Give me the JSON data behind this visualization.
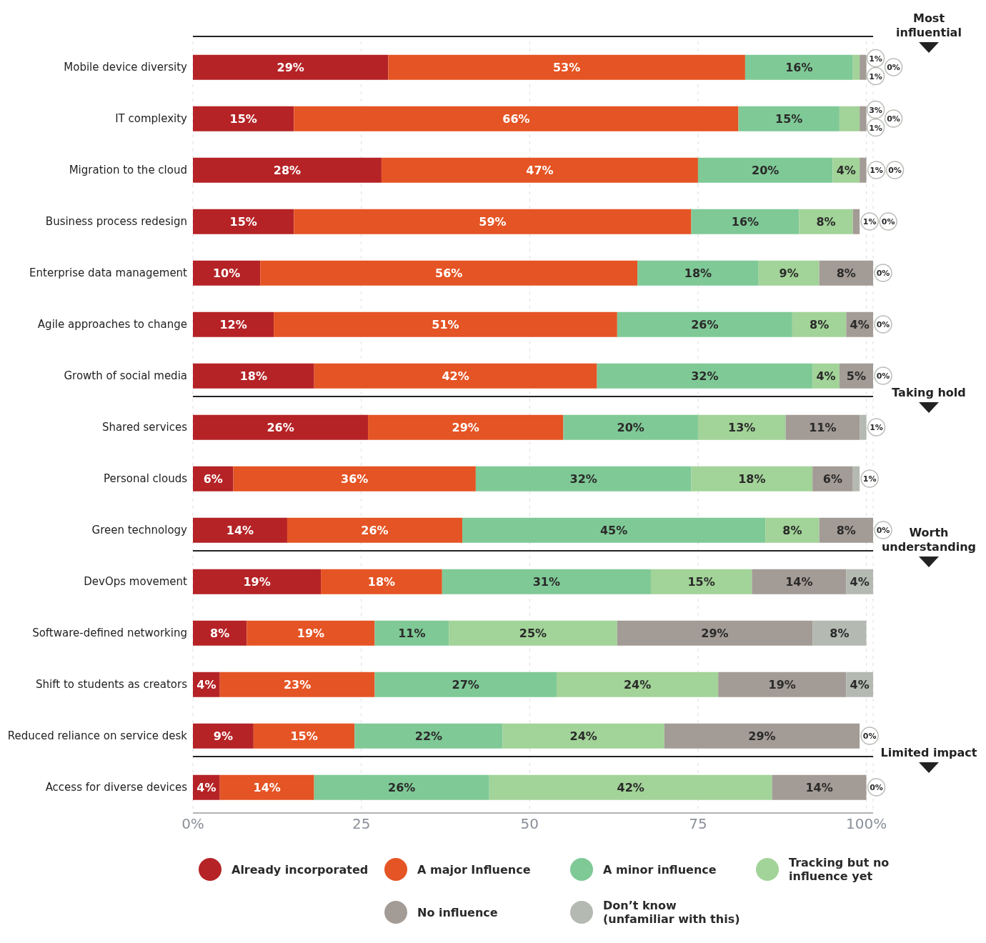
{
  "chart_data": {
    "type": "bar",
    "orientation": "horizontal",
    "stacked": true,
    "categories": [
      "Mobile device diversity",
      "IT complexity",
      "Migration to the cloud",
      "Business process redesign",
      "Enterprise data management",
      "Agile approaches to change",
      "Growth of social media",
      "Shared services",
      "Personal clouds",
      "Green technology",
      "DevOps movement",
      "Software-defined networking",
      "Shift to students as creators",
      "Reduced reliance on service desk",
      "Access for diverse devices"
    ],
    "series": [
      {
        "name": "Already incorporated",
        "color": "#b52326",
        "values": [
          29,
          15,
          28,
          15,
          10,
          12,
          18,
          26,
          6,
          14,
          19,
          8,
          4,
          9,
          4
        ],
        "value_labels": [
          "29%",
          "15%",
          "28%",
          "15%",
          "10%",
          "12%",
          "18%",
          "26%",
          "6%",
          "14%",
          "19%",
          "8%",
          "4%",
          "9%",
          "4%"
        ]
      },
      {
        "name": "A major Influence",
        "color": "#e55424",
        "values": [
          53,
          66,
          47,
          59,
          56,
          51,
          42,
          29,
          36,
          26,
          18,
          19,
          23,
          15,
          14
        ],
        "value_labels": [
          "53%",
          "66%",
          "47%",
          "59%",
          "56%",
          "51%",
          "42%",
          "29%",
          "36%",
          "26%",
          "18%",
          "19%",
          "23%",
          "15%",
          "14%"
        ]
      },
      {
        "name": "A minor influence",
        "color": "#7fc996",
        "values": [
          16,
          15,
          20,
          16,
          18,
          26,
          32,
          20,
          32,
          45,
          31,
          11,
          27,
          22,
          26
        ],
        "value_labels": [
          "16%",
          "15%",
          "20%",
          "16%",
          "18%",
          "26%",
          "32%",
          "20%",
          "32%",
          "45%",
          "31%",
          "11%",
          "27%",
          "22%",
          "26%"
        ]
      },
      {
        "name": "Tracking but no influence yet",
        "color": "#a2d398",
        "values": [
          1,
          3,
          4,
          8,
          9,
          8,
          4,
          13,
          18,
          8,
          15,
          25,
          24,
          24,
          42
        ],
        "value_labels": [
          "1%",
          "3%",
          "4%",
          "8%",
          "9%",
          "8%",
          "4%",
          "13%",
          "18%",
          "8%",
          "15%",
          "25%",
          "24%",
          "24%",
          "42%"
        ]
      },
      {
        "name": "No influence",
        "color": "#a39b95",
        "values": [
          1,
          1,
          1,
          1,
          8,
          4,
          5,
          11,
          6,
          8,
          14,
          29,
          19,
          29,
          14
        ],
        "value_labels": [
          "1%",
          "1%",
          "1%",
          "1%",
          "8%",
          "4%",
          "5%",
          "11%",
          "6%",
          "8%",
          "14%",
          "29%",
          "19%",
          "29%",
          "14%"
        ]
      },
      {
        "name": "Don’t know (unfamiliar with this)",
        "color": "#b4b9b2",
        "values": [
          0,
          0,
          0,
          0,
          0,
          0,
          0,
          1,
          1,
          0,
          4,
          8,
          4,
          0,
          0
        ],
        "value_labels": [
          "0%",
          "0%",
          "0%",
          "0%",
          "0%",
          "0%",
          "0%",
          "1%",
          "1%",
          "0%",
          "4%",
          "8%",
          "4%",
          "0%",
          "0%"
        ]
      }
    ],
    "xlim": [
      0,
      101
    ],
    "xticks": [
      {
        "value": 0,
        "label": "0%"
      },
      25,
      50,
      75,
      {
        "value": 100,
        "label": "100%"
      }
    ],
    "grid": "x",
    "legend": "bottom",
    "annotations": [
      "Most influential",
      "Taking hold",
      "Worth understanding",
      "Limited impact"
    ]
  }
}
